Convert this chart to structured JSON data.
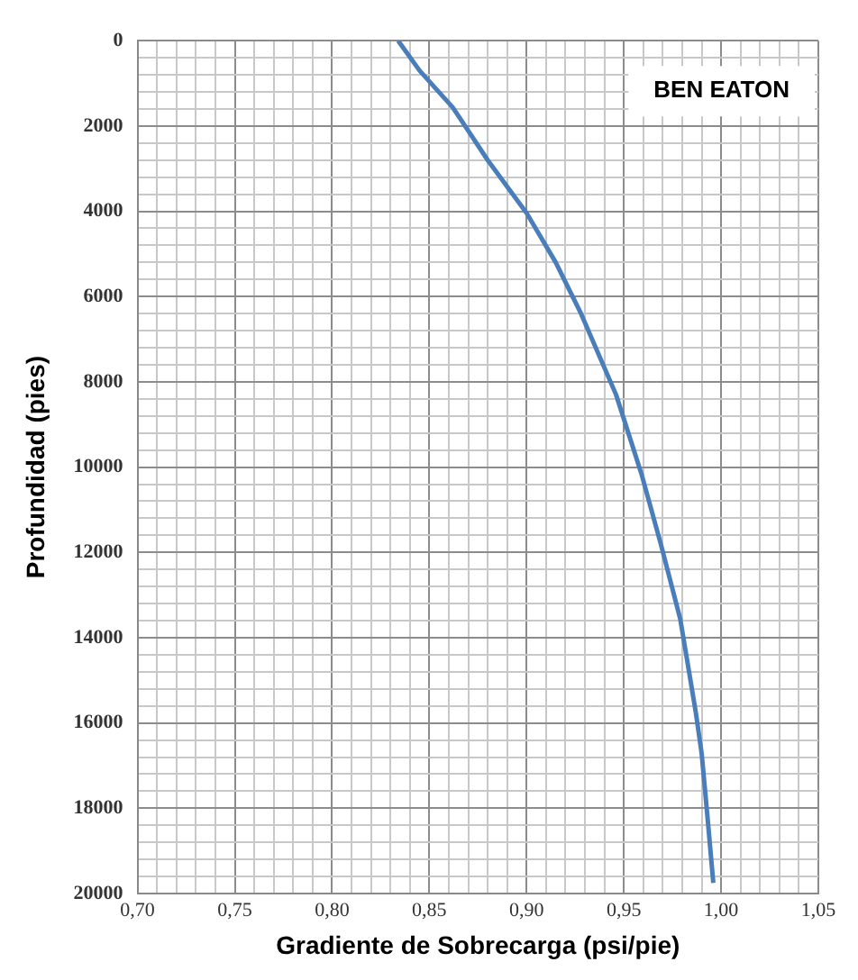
{
  "chart_data": {
    "type": "line",
    "xlabel": "Gradiente de Sobrecarga (psi/pie)",
    "ylabel": "Profundidad (pies)",
    "annotations": [
      "BEN EATON"
    ],
    "series": [
      {
        "color": "#4a7ebb",
        "x": [
          0.834,
          0.845,
          0.862,
          0.88,
          0.9,
          0.915,
          0.928,
          0.946,
          0.959,
          0.969,
          0.979,
          0.987,
          0.99,
          0.993,
          0.996
        ],
        "values": [
          0,
          700,
          1560,
          2800,
          4040,
          5200,
          6400,
          8300,
          10150,
          11800,
          13560,
          15750,
          16710,
          18200,
          19750
        ]
      }
    ],
    "xlim": [
      0.7,
      1.05
    ],
    "ylim": [
      20000,
      0
    ],
    "xticks": [
      {
        "value": 0.7,
        "label": "0,70"
      },
      {
        "value": 0.71,
        "label": null
      },
      {
        "value": 0.72,
        "label": null
      },
      {
        "value": 0.73,
        "label": null
      },
      {
        "value": 0.74,
        "label": null
      },
      {
        "value": 0.75,
        "label": "0,75"
      },
      {
        "value": 0.76,
        "label": null
      },
      {
        "value": 0.77,
        "label": null
      },
      {
        "value": 0.78,
        "label": null
      },
      {
        "value": 0.79,
        "label": null
      },
      {
        "value": 0.8,
        "label": "0,80"
      },
      {
        "value": 0.81,
        "label": null
      },
      {
        "value": 0.82,
        "label": null
      },
      {
        "value": 0.83,
        "label": null
      },
      {
        "value": 0.84,
        "label": null
      },
      {
        "value": 0.85,
        "label": "0,85"
      },
      {
        "value": 0.86,
        "label": null
      },
      {
        "value": 0.87,
        "label": null
      },
      {
        "value": 0.88,
        "label": null
      },
      {
        "value": 0.89,
        "label": null
      },
      {
        "value": 0.9,
        "label": "0,90"
      },
      {
        "value": 0.91,
        "label": null
      },
      {
        "value": 0.92,
        "label": null
      },
      {
        "value": 0.93,
        "label": null
      },
      {
        "value": 0.94,
        "label": null
      },
      {
        "value": 0.95,
        "label": "0,95"
      },
      {
        "value": 0.96,
        "label": null
      },
      {
        "value": 0.97,
        "label": null
      },
      {
        "value": 0.98,
        "label": null
      },
      {
        "value": 0.99,
        "label": null
      },
      {
        "value": 1.0,
        "label": "1,00"
      },
      {
        "value": 1.01,
        "label": null
      },
      {
        "value": 1.02,
        "label": null
      },
      {
        "value": 1.03,
        "label": null
      },
      {
        "value": 1.04,
        "label": null
      },
      {
        "value": 1.05,
        "label": "1,05"
      }
    ],
    "yticks": [
      0,
      {
        "value": 400,
        "label": null
      },
      {
        "value": 800,
        "label": null
      },
      {
        "value": 1200,
        "label": null
      },
      {
        "value": 1600,
        "label": null
      },
      2000,
      {
        "value": 2400,
        "label": null
      },
      {
        "value": 2800,
        "label": null
      },
      {
        "value": 3200,
        "label": null
      },
      {
        "value": 3600,
        "label": null
      },
      4000,
      {
        "value": 4400,
        "label": null
      },
      {
        "value": 4800,
        "label": null
      },
      {
        "value": 5200,
        "label": null
      },
      {
        "value": 5600,
        "label": null
      },
      6000,
      {
        "value": 6400,
        "label": null
      },
      {
        "value": 6800,
        "label": null
      },
      {
        "value": 7200,
        "label": null
      },
      {
        "value": 7600,
        "label": null
      },
      8000,
      {
        "value": 8400,
        "label": null
      },
      {
        "value": 8800,
        "label": null
      },
      {
        "value": 9200,
        "label": null
      },
      {
        "value": 9600,
        "label": null
      },
      10000,
      {
        "value": 10400,
        "label": null
      },
      {
        "value": 10800,
        "label": null
      },
      {
        "value": 11200,
        "label": null
      },
      {
        "value": 11600,
        "label": null
      },
      12000,
      {
        "value": 12400,
        "label": null
      },
      {
        "value": 12800,
        "label": null
      },
      {
        "value": 13200,
        "label": null
      },
      {
        "value": 13600,
        "label": null
      },
      14000,
      {
        "value": 14400,
        "label": null
      },
      {
        "value": 14800,
        "label": null
      },
      {
        "value": 15200,
        "label": null
      },
      {
        "value": 15600,
        "label": null
      },
      16000,
      {
        "value": 16400,
        "label": null
      },
      {
        "value": 16800,
        "label": null
      },
      {
        "value": 17200,
        "label": null
      },
      {
        "value": 17600,
        "label": null
      },
      18000,
      {
        "value": 18400,
        "label": null
      },
      {
        "value": 18800,
        "label": null
      },
      {
        "value": 19200,
        "label": null
      },
      {
        "value": 19600,
        "label": null
      },
      20000
    ],
    "grid": true,
    "marker": "none",
    "line_style": "solid"
  }
}
